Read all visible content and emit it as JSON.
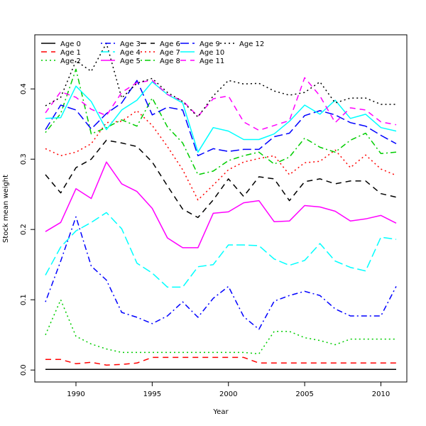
{
  "chart_data": {
    "type": "line",
    "title": "",
    "xlabel": "Year",
    "ylabel": "Stock mean weight",
    "xlim": [
      1987.3,
      2011.7
    ],
    "ylim": [
      -0.017,
      0.477
    ],
    "x_ticks": [
      1990,
      1995,
      2000,
      2005,
      2010
    ],
    "y_ticks": [
      0.0,
      0.1,
      0.2,
      0.3,
      0.4
    ],
    "y_tick_labels": [
      "0.0",
      "0.1",
      "0.2",
      "0.3",
      "0.4"
    ],
    "grid": false,
    "legend_position": "top-left",
    "x": [
      1988,
      1989,
      1990,
      1991,
      1992,
      1993,
      1994,
      1995,
      1996,
      1997,
      1998,
      1999,
      2000,
      2001,
      2002,
      2003,
      2004,
      2005,
      2006,
      2007,
      2008,
      2009,
      2010,
      2011
    ],
    "series": [
      {
        "name": "Age 0",
        "color": "#000000",
        "dash": "solid",
        "values": [
          0.001,
          0.001,
          0.001,
          0.001,
          0.001,
          0.001,
          0.001,
          0.001,
          0.001,
          0.001,
          0.001,
          0.001,
          0.001,
          0.001,
          0.001,
          0.001,
          0.001,
          0.001,
          0.001,
          0.001,
          0.001,
          0.001,
          0.001,
          0.001
        ]
      },
      {
        "name": "Age 1",
        "color": "#ff0000",
        "dash": "dashed",
        "values": [
          0.015,
          0.015,
          0.009,
          0.011,
          0.007,
          0.008,
          0.01,
          0.018,
          0.018,
          0.018,
          0.018,
          0.018,
          0.018,
          0.018,
          0.01,
          0.01,
          0.01,
          0.01,
          0.01,
          0.01,
          0.01,
          0.01,
          0.01,
          0.01
        ]
      },
      {
        "name": "Age 2",
        "color": "#00cd00",
        "dash": "dotted",
        "values": [
          0.05,
          0.1,
          0.048,
          0.037,
          0.03,
          0.025,
          0.025,
          0.025,
          0.025,
          0.025,
          0.025,
          0.025,
          0.025,
          0.025,
          0.023,
          0.055,
          0.055,
          0.046,
          0.042,
          0.036,
          0.044,
          0.044,
          0.044,
          0.044
        ]
      },
      {
        "name": "Age 3",
        "color": "#0000ff",
        "dash": "dotdash",
        "values": [
          0.097,
          0.155,
          0.218,
          0.148,
          0.128,
          0.082,
          0.075,
          0.066,
          0.077,
          0.097,
          0.075,
          0.102,
          0.119,
          0.076,
          0.058,
          0.098,
          0.106,
          0.112,
          0.106,
          0.087,
          0.077,
          0.077,
          0.077,
          0.119
        ]
      },
      {
        "name": "Age 4",
        "color": "#00ffff",
        "dash": "longdash",
        "values": [
          0.135,
          0.175,
          0.198,
          0.21,
          0.224,
          0.201,
          0.152,
          0.138,
          0.118,
          0.118,
          0.147,
          0.15,
          0.178,
          0.178,
          0.177,
          0.158,
          0.149,
          0.156,
          0.18,
          0.155,
          0.146,
          0.141,
          0.189,
          0.186
        ]
      },
      {
        "name": "Age 5",
        "color": "#ff00ff",
        "dash": "solid",
        "values": [
          0.197,
          0.21,
          0.258,
          0.244,
          0.296,
          0.265,
          0.254,
          0.23,
          0.188,
          0.174,
          0.174,
          0.223,
          0.225,
          0.238,
          0.241,
          0.211,
          0.212,
          0.234,
          0.232,
          0.226,
          0.212,
          0.215,
          0.22,
          0.209
        ]
      },
      {
        "name": "Age 6",
        "color": "#000000",
        "dash": "dashed",
        "values": [
          0.278,
          0.252,
          0.288,
          0.3,
          0.327,
          0.323,
          0.318,
          0.296,
          0.262,
          0.229,
          0.217,
          0.242,
          0.272,
          0.247,
          0.275,
          0.272,
          0.241,
          0.268,
          0.272,
          0.265,
          0.269,
          0.269,
          0.251,
          0.246
        ]
      },
      {
        "name": "Age 7",
        "color": "#ff0000",
        "dash": "dotted",
        "values": [
          0.315,
          0.305,
          0.31,
          0.322,
          0.352,
          0.354,
          0.369,
          0.348,
          0.318,
          0.285,
          0.242,
          0.263,
          0.285,
          0.296,
          0.301,
          0.305,
          0.278,
          0.295,
          0.297,
          0.313,
          0.288,
          0.306,
          0.286,
          0.277
        ]
      },
      {
        "name": "Age 8",
        "color": "#00cd00",
        "dash": "dotdash",
        "values": [
          0.338,
          0.365,
          0.428,
          0.336,
          0.345,
          0.356,
          0.347,
          0.387,
          0.346,
          0.323,
          0.278,
          0.283,
          0.298,
          0.305,
          0.31,
          0.293,
          0.303,
          0.33,
          0.317,
          0.31,
          0.327,
          0.337,
          0.308,
          0.31
        ]
      },
      {
        "name": "Age 9",
        "color": "#0000ff",
        "dash": "longdash",
        "values": [
          0.342,
          0.377,
          0.37,
          0.343,
          0.365,
          0.38,
          0.412,
          0.363,
          0.374,
          0.37,
          0.305,
          0.315,
          0.311,
          0.314,
          0.314,
          0.332,
          0.337,
          0.362,
          0.369,
          0.363,
          0.352,
          0.347,
          0.334,
          0.322
        ]
      },
      {
        "name": "Age 10",
        "color": "#00ffff",
        "dash": "solid",
        "values": [
          0.358,
          0.359,
          0.404,
          0.382,
          0.342,
          0.37,
          0.384,
          0.41,
          0.392,
          0.38,
          0.31,
          0.345,
          0.34,
          0.328,
          0.328,
          0.336,
          0.354,
          0.377,
          0.364,
          0.384,
          0.358,
          0.364,
          0.345,
          0.34
        ]
      },
      {
        "name": "Age 11",
        "color": "#ff00ff",
        "dash": "dashed",
        "values": [
          0.366,
          0.396,
          0.388,
          0.371,
          0.362,
          0.395,
          0.409,
          0.412,
          0.392,
          0.383,
          0.361,
          0.386,
          0.39,
          0.353,
          0.341,
          0.348,
          0.355,
          0.416,
          0.39,
          0.352,
          0.373,
          0.37,
          0.353,
          0.349
        ]
      },
      {
        "name": "Age 12",
        "color": "#000000",
        "dash": "dotted",
        "values": [
          0.376,
          0.388,
          0.44,
          0.425,
          0.465,
          0.387,
          0.408,
          0.415,
          0.395,
          0.382,
          0.36,
          0.39,
          0.412,
          0.407,
          0.408,
          0.397,
          0.391,
          0.395,
          0.41,
          0.38,
          0.387,
          0.387,
          0.378,
          0.378
        ]
      }
    ]
  }
}
